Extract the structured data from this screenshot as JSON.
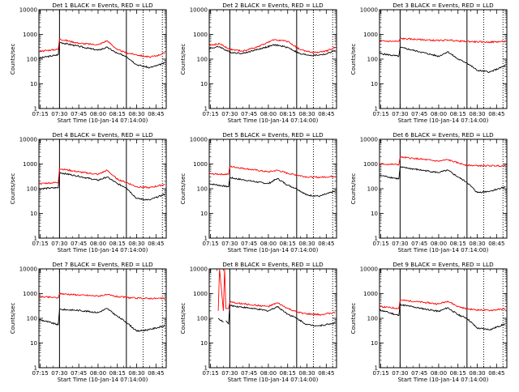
{
  "chart_data": [
    {
      "type": "line",
      "title": "Det 1  BLACK = Events, RED = LLD",
      "xlabel": "Start Time (10-Jan-14 07:14:00)",
      "ylabel": "Counts/sec",
      "yscale": "log",
      "ylim": [
        1,
        10000
      ],
      "xticks": [
        "07:15",
        "07:30",
        "07:45",
        "08:00",
        "08:15",
        "08:30",
        "08:45"
      ],
      "yticks": [
        "1",
        "10",
        "100",
        "1000",
        "10000"
      ],
      "x": [
        "07:14",
        "07:29",
        "07:30",
        "07:45",
        "08:00",
        "08:07",
        "08:15",
        "08:22",
        "08:30",
        "08:40",
        "08:46",
        "08:52"
      ],
      "series": [
        {
          "name": "BLACK",
          "color": "#000000",
          "values": [
            110,
            150,
            480,
            330,
            230,
            300,
            170,
            130,
            60,
            45,
            55,
            70
          ]
        },
        {
          "name": "RED",
          "color": "#ff0000",
          "values": [
            210,
            250,
            650,
            440,
            380,
            560,
            240,
            180,
            150,
            120,
            140,
            180
          ]
        }
      ],
      "vlines_solid": [
        "07:30",
        "08:22"
      ],
      "vlines_dotted": [
        "08:35",
        "08:50"
      ]
    },
    {
      "type": "line",
      "title": "Det 2  BLACK = Events, RED = LLD",
      "xlabel": "Start Time (10-Jan-14 07:14:00)",
      "ylabel": "Counts/sec",
      "yscale": "log",
      "ylim": [
        1,
        10000
      ],
      "xticks": [
        "07:15",
        "07:30",
        "07:45",
        "08:00",
        "08:15",
        "08:30",
        "08:45"
      ],
      "yticks": [
        "1",
        "10",
        "100",
        "1000",
        "10000"
      ],
      "x": [
        "07:14",
        "07:22",
        "07:30",
        "07:40",
        "07:52",
        "08:05",
        "08:15",
        "08:25",
        "08:35",
        "08:45",
        "08:52"
      ],
      "series": [
        {
          "name": "BLACK",
          "color": "#000000",
          "values": [
            270,
            320,
            190,
            170,
            250,
            380,
            300,
            160,
            140,
            160,
            230
          ]
        },
        {
          "name": "RED",
          "color": "#ff0000",
          "values": [
            350,
            420,
            250,
            210,
            320,
            620,
            520,
            240,
            180,
            210,
            300
          ]
        }
      ],
      "vlines_solid": [
        "07:30",
        "08:22"
      ],
      "vlines_dotted": [
        "08:35",
        "08:50"
      ]
    },
    {
      "type": "line",
      "title": "Det 3  BLACK = Events, RED = LLD",
      "xlabel": "Start Time (10-Jan-14 07:14:00)",
      "ylabel": "Counts/sec",
      "yscale": "log",
      "ylim": [
        1,
        10000
      ],
      "xticks": [
        "07:15",
        "07:30",
        "07:45",
        "08:00",
        "08:15",
        "08:30",
        "08:45"
      ],
      "yticks": [
        "1",
        "10",
        "100",
        "1000",
        "10000"
      ],
      "x": [
        "07:14",
        "07:29",
        "07:30",
        "07:45",
        "08:00",
        "08:07",
        "08:15",
        "08:22",
        "08:30",
        "08:40",
        "08:52"
      ],
      "series": [
        {
          "name": "BLACK",
          "color": "#000000",
          "values": [
            170,
            130,
            300,
            200,
            130,
            200,
            100,
            70,
            35,
            30,
            55
          ]
        },
        {
          "name": "RED",
          "color": "#ff0000",
          "values": [
            540,
            520,
            680,
            620,
            560,
            600,
            540,
            520,
            500,
            490,
            520
          ]
        }
      ],
      "vlines_solid": [
        "07:30",
        "08:22"
      ],
      "vlines_dotted": [
        "08:35",
        "08:50"
      ]
    },
    {
      "type": "line",
      "title": "Det 4  BLACK = Events, RED = LLD",
      "xlabel": "Start Time (10-Jan-14 07:14:00)",
      "ylabel": "Counts/sec",
      "yscale": "log",
      "ylim": [
        1,
        10000
      ],
      "xticks": [
        "07:15",
        "07:30",
        "07:45",
        "08:00",
        "08:15",
        "08:30",
        "08:45"
      ],
      "yticks": [
        "1",
        "10",
        "100",
        "1000",
        "10000"
      ],
      "x": [
        "07:14",
        "07:29",
        "07:30",
        "07:45",
        "08:00",
        "08:07",
        "08:15",
        "08:22",
        "08:30",
        "08:40",
        "08:52"
      ],
      "series": [
        {
          "name": "BLACK",
          "color": "#000000",
          "values": [
            100,
            110,
            450,
            320,
            220,
            300,
            160,
            110,
            40,
            35,
            60
          ]
        },
        {
          "name": "RED",
          "color": "#ff0000",
          "values": [
            160,
            180,
            650,
            480,
            380,
            560,
            240,
            180,
            120,
            110,
            150
          ]
        }
      ],
      "vlines_solid": [
        "07:30",
        "08:22"
      ],
      "vlines_dotted": [
        "08:35",
        "08:50"
      ]
    },
    {
      "type": "line",
      "title": "Det 5  BLACK = Events, RED = LLD",
      "xlabel": "Start Time (10-Jan-14 07:14:00)",
      "ylabel": "Counts/sec",
      "yscale": "log",
      "ylim": [
        1,
        10000
      ],
      "xticks": [
        "07:15",
        "07:30",
        "07:45",
        "08:00",
        "08:15",
        "08:30",
        "08:45"
      ],
      "yticks": [
        "1",
        "10",
        "100",
        "1000",
        "10000"
      ],
      "x": [
        "07:14",
        "07:29",
        "07:30",
        "07:45",
        "08:00",
        "08:07",
        "08:15",
        "08:22",
        "08:30",
        "08:40",
        "08:52"
      ],
      "series": [
        {
          "name": "BLACK",
          "color": "#000000",
          "values": [
            160,
            120,
            280,
            210,
            160,
            260,
            140,
            100,
            55,
            50,
            80
          ]
        },
        {
          "name": "RED",
          "color": "#ff0000",
          "values": [
            400,
            380,
            800,
            620,
            480,
            560,
            420,
            360,
            300,
            290,
            320
          ]
        }
      ],
      "vlines_solid": [
        "07:30",
        "08:22"
      ],
      "vlines_dotted": [
        "08:35",
        "08:50"
      ]
    },
    {
      "type": "line",
      "title": "Det 6  BLACK = Events, RED = LLD",
      "xlabel": "Start Time (10-Jan-14 07:14:00)",
      "ylabel": "Counts/sec",
      "yscale": "log",
      "ylim": [
        1,
        10000
      ],
      "xticks": [
        "07:15",
        "07:30",
        "07:45",
        "08:00",
        "08:15",
        "08:30",
        "08:45"
      ],
      "yticks": [
        "1",
        "10",
        "100",
        "1000",
        "10000"
      ],
      "x": [
        "07:14",
        "07:29",
        "07:30",
        "07:45",
        "08:00",
        "08:07",
        "08:15",
        "08:22",
        "08:30",
        "08:40",
        "08:52"
      ],
      "series": [
        {
          "name": "BLACK",
          "color": "#000000",
          "values": [
            350,
            250,
            750,
            580,
            450,
            560,
            300,
            180,
            70,
            80,
            120
          ]
        },
        {
          "name": "RED",
          "color": "#ff0000",
          "values": [
            1000,
            950,
            1900,
            1600,
            1300,
            1500,
            1100,
            900,
            850,
            850,
            850
          ]
        }
      ],
      "vlines_solid": [
        "07:30",
        "08:22"
      ],
      "vlines_dotted": [
        "08:35",
        "08:50"
      ]
    },
    {
      "type": "line",
      "title": "Det 7  BLACK = Events, RED = LLD",
      "xlabel": "Start Time (10-Jan-14 07:14:00)",
      "ylabel": "Counts/sec",
      "yscale": "log",
      "ylim": [
        1,
        10000
      ],
      "xticks": [
        "07:15",
        "07:30",
        "07:45",
        "08:00",
        "08:15",
        "08:30",
        "08:45"
      ],
      "yticks": [
        "1",
        "10",
        "100",
        "1000",
        "10000"
      ],
      "x": [
        "07:14",
        "07:29",
        "07:30",
        "07:45",
        "08:00",
        "08:07",
        "08:15",
        "08:22",
        "08:30",
        "08:40",
        "08:52"
      ],
      "series": [
        {
          "name": "BLACK",
          "color": "#000000",
          "values": [
            90,
            55,
            230,
            210,
            170,
            250,
            120,
            70,
            30,
            35,
            50
          ]
        },
        {
          "name": "RED",
          "color": "#ff0000",
          "values": [
            750,
            680,
            1000,
            880,
            800,
            900,
            750,
            700,
            650,
            640,
            640
          ]
        }
      ],
      "vlines_solid": [
        "07:30",
        "08:22"
      ],
      "vlines_dotted": [
        "08:35",
        "08:50"
      ]
    },
    {
      "type": "line",
      "title": "Det 8  BLACK = Events, RED = LLD",
      "xlabel": "Start Time (10-Jan-14 07:14:00)",
      "ylabel": "Counts/sec",
      "yscale": "log",
      "ylim": [
        1,
        10000
      ],
      "xticks": [
        "07:15",
        "07:30",
        "07:45",
        "08:00",
        "08:15",
        "08:30",
        "08:45"
      ],
      "yticks": [
        "1",
        "10",
        "100",
        "1000",
        "10000"
      ],
      "x": [
        "07:21",
        "07:22",
        "07:25",
        "07:26",
        "07:27",
        "07:29",
        "07:30",
        "07:45",
        "08:00",
        "08:07",
        "08:15",
        "08:22",
        "08:30",
        "08:40",
        "08:52"
      ],
      "series": [
        {
          "name": "BLACK",
          "color": "#000000",
          "values": [
            100,
            90,
            70,
            null,
            80,
            60,
            330,
            260,
            200,
            300,
            150,
            100,
            55,
            50,
            65
          ]
        },
        {
          "name": "RED",
          "color": "#ff0000",
          "values": [
            200,
            10000,
            200,
            10000,
            250,
            250,
            450,
            360,
            300,
            420,
            250,
            180,
            150,
            140,
            170
          ]
        }
      ],
      "vlines_solid": [
        "07:30",
        "08:22"
      ],
      "vlines_dotted": [
        "08:35",
        "08:50"
      ]
    },
    {
      "type": "line",
      "title": "Det 9  BLACK = Events, RED = LLD",
      "xlabel": "Start Time (10-Jan-14 07:14:00)",
      "ylabel": "Counts/sec",
      "yscale": "log",
      "ylim": [
        1,
        10000
      ],
      "xticks": [
        "07:15",
        "07:30",
        "07:45",
        "08:00",
        "08:15",
        "08:30",
        "08:45"
      ],
      "yticks": [
        "1",
        "10",
        "100",
        "1000",
        "10000"
      ],
      "x": [
        "07:14",
        "07:29",
        "07:30",
        "07:45",
        "08:00",
        "08:07",
        "08:15",
        "08:22",
        "08:30",
        "08:40",
        "08:52"
      ],
      "series": [
        {
          "name": "BLACK",
          "color": "#000000",
          "values": [
            220,
            130,
            360,
            260,
            190,
            270,
            140,
            100,
            40,
            35,
            60
          ]
        },
        {
          "name": "RED",
          "color": "#ff0000",
          "values": [
            300,
            250,
            550,
            460,
            380,
            500,
            300,
            240,
            220,
            210,
            240
          ]
        }
      ],
      "vlines_solid": [
        "07:30",
        "08:22"
      ],
      "vlines_dotted": [
        "08:35",
        "08:50"
      ]
    }
  ]
}
